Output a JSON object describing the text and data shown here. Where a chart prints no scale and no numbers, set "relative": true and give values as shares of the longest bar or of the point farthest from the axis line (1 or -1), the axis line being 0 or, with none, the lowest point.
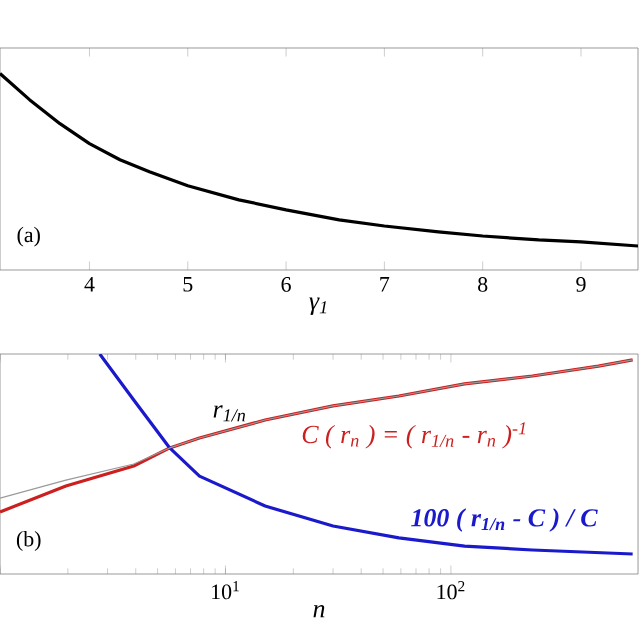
{
  "chart_data": [
    {
      "type": "line",
      "xlabel": "γ$_{1}$",
      "color": "#000000",
      "relative": true,
      "xlim": [
        3.09,
        9.58
      ],
      "xticks": [
        4,
        5,
        6,
        7,
        8,
        9
      ],
      "annotations": [
        "(a)"
      ],
      "x": [
        3.09,
        3.39,
        3.7,
        4.0,
        4.31,
        4.61,
        5.0,
        5.52,
        6.0,
        6.54,
        7.0,
        7.55,
        8.0,
        8.57,
        9.0,
        9.58
      ],
      "values": [
        1,
        0.867,
        0.745,
        0.643,
        0.561,
        0.5,
        0.429,
        0.357,
        0.306,
        0.255,
        0.224,
        0.194,
        0.173,
        0.153,
        0.143,
        0.122
      ]
    },
    {
      "type": "line",
      "xlabel": "n",
      "log": "x",
      "relative": true,
      "xlim": [
        1,
        676
      ],
      "xticks": [
        {
          "value": 1,
          "label": null
        },
        {
          "value": 10,
          "label": "10$^{1}$"
        },
        {
          "value": 100,
          "label": "10$^{2}$"
        }
      ],
      "annotations": [
        "(b)"
      ],
      "series": [
        {
          "name": "r$_{1/n}$",
          "color": "#999999",
          "x": [
            1,
            1.96,
            3.92,
            5.66,
            7.67,
            15,
            30,
            58.8,
            115,
            230,
            451,
            640
          ],
          "values": [
            0.345,
            0.427,
            0.5,
            0.573,
            0.618,
            0.7,
            0.764,
            0.809,
            0.864,
            0.9,
            0.945,
            0.973
          ]
        },
        {
          "name": "C ( r$_{n}$ ) = ( r$_{1/n}$ - r$_{n}$ )$^{-1}$",
          "color": "#cc1f1f",
          "x": [
            1,
            1.96,
            3.92,
            5.66,
            7.67,
            15,
            30,
            58.8,
            115,
            230,
            451,
            640
          ],
          "values": [
            0.282,
            0.4,
            0.491,
            0.573,
            0.618,
            0.7,
            0.764,
            0.809,
            0.864,
            0.9,
            0.945,
            0.973
          ]
        },
        {
          "name": "100 ( r$_{1/n}$ - C ) / C",
          "color": "#1a1acc",
          "x": [
            2.77,
            3.92,
            5.66,
            7.67,
            15,
            30,
            58.8,
            115,
            230,
            640
          ],
          "values": [
            1,
            0.791,
            0.573,
            0.445,
            0.309,
            0.218,
            0.164,
            0.127,
            0.109,
            0.091
          ]
        }
      ]
    }
  ]
}
